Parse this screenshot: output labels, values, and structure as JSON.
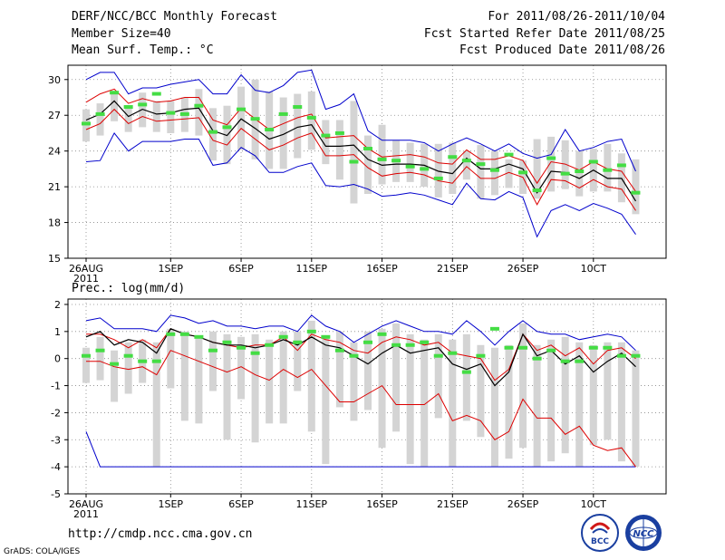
{
  "header": {
    "left_line1": "DERF/NCC/BCC Monthly Forecast",
    "left_line2": "Member Size=40",
    "left_line3": "Mean Surf. Temp.: °C",
    "right_line1": "For 2011/08/26-2011/10/04",
    "right_line2": "Fcst Started Refer Date 2011/08/25",
    "right_line3": "Fcst Produced Date 2011/08/26"
  },
  "footer": {
    "url": "http://cmdp.ncc.cma.gov.cn",
    "credit": "GrADS: COLA/IGES",
    "logo_bcc": "BCC",
    "logo_ncc": "NCC"
  },
  "colors": {
    "box": "#d4d4d4",
    "forecast": "#44dd44",
    "mean": "#000000",
    "band": "#dd0000",
    "envelope": "#0000cc",
    "grid": "#888888"
  },
  "chart_data": [
    {
      "type": "line",
      "title": "Mean Surf. Temp.: °C",
      "ylim": [
        15,
        31.2
      ],
      "yticks": [
        15,
        18,
        21,
        24,
        27,
        30
      ],
      "xticks": [
        {
          "day": 0,
          "label": "26AUG",
          "sub": "2011"
        },
        {
          "day": 6,
          "label": "1SEP"
        },
        {
          "day": 11,
          "label": "6SEP"
        },
        {
          "day": 16,
          "label": "11SEP"
        },
        {
          "day": 21,
          "label": "16SEP"
        },
        {
          "day": 26,
          "label": "21SEP"
        },
        {
          "day": 31,
          "label": "26SEP"
        },
        {
          "day": 36,
          "label": "10CT"
        }
      ],
      "x": [
        0,
        1,
        2,
        3,
        4,
        5,
        6,
        7,
        8,
        9,
        10,
        11,
        12,
        13,
        14,
        15,
        16,
        17,
        18,
        19,
        20,
        21,
        22,
        23,
        24,
        25,
        26,
        27,
        28,
        29,
        30,
        31,
        32,
        33,
        34,
        35,
        36,
        37,
        38,
        39
      ],
      "series": [
        {
          "name": "max",
          "values": [
            23.1,
            23.2,
            25.5,
            24.0,
            24.8,
            24.8,
            24.8,
            25.0,
            25.0,
            22.8,
            23.0,
            24.3,
            23.6,
            22.2,
            22.2,
            22.7,
            23.0,
            21.1,
            21.0,
            21.2,
            20.8,
            20.2,
            20.3,
            20.5,
            20.3,
            19.9,
            19.5,
            21.3,
            20.0,
            19.9,
            20.6,
            20.1,
            16.8,
            19.0,
            19.5,
            19.0,
            19.6,
            19.2,
            18.7,
            17.0
          ]
        },
        {
          "name": "p_low",
          "values": [
            25.8,
            26.3,
            27.5,
            26.3,
            26.9,
            26.5,
            26.6,
            26.7,
            26.8,
            24.9,
            24.5,
            25.9,
            25.0,
            24.1,
            24.5,
            25.1,
            25.5,
            23.6,
            23.6,
            23.7,
            22.6,
            21.9,
            22.1,
            22.2,
            22.0,
            21.5,
            21.3,
            22.7,
            21.7,
            21.7,
            22.2,
            21.8,
            19.5,
            21.6,
            21.5,
            20.9,
            21.6,
            21.0,
            20.8,
            19.0
          ]
        },
        {
          "name": "mean",
          "values": [
            26.6,
            27.1,
            28.2,
            26.9,
            27.5,
            27.1,
            27.2,
            27.5,
            27.6,
            25.7,
            25.3,
            26.7,
            25.9,
            25.0,
            25.4,
            26.0,
            26.2,
            24.4,
            24.4,
            24.5,
            23.3,
            22.8,
            22.9,
            22.9,
            22.8,
            22.3,
            22.1,
            23.4,
            22.5,
            22.5,
            22.9,
            22.5,
            20.5,
            22.3,
            22.2,
            21.7,
            22.4,
            21.7,
            21.7,
            19.8
          ]
        },
        {
          "name": "p_high",
          "values": [
            28.1,
            28.8,
            29.2,
            28.0,
            28.4,
            28.1,
            28.2,
            28.5,
            28.5,
            26.6,
            26.2,
            27.6,
            26.7,
            25.8,
            26.3,
            26.8,
            27.1,
            25.1,
            25.2,
            25.3,
            24.2,
            23.5,
            23.6,
            23.7,
            23.5,
            23.0,
            22.9,
            24.1,
            23.3,
            23.3,
            23.6,
            23.2,
            21.3,
            23.1,
            22.9,
            22.4,
            23.1,
            22.5,
            22.3,
            20.6
          ]
        },
        {
          "name": "min",
          "values": [
            30.0,
            30.6,
            30.6,
            28.8,
            29.3,
            29.3,
            29.6,
            29.8,
            30.0,
            28.8,
            28.8,
            30.4,
            29.1,
            28.9,
            29.5,
            30.6,
            30.8,
            27.5,
            27.9,
            28.8,
            25.7,
            24.9,
            24.9,
            24.9,
            24.7,
            24.0,
            24.6,
            25.1,
            24.6,
            24.0,
            24.6,
            23.8,
            23.4,
            23.7,
            25.8,
            24.0,
            24.3,
            24.8,
            25.0,
            22.3
          ]
        },
        {
          "name": "fcst",
          "values": [
            26.3,
            27.1,
            28.9,
            27.7,
            27.9,
            28.8,
            27.2,
            27.1,
            27.8,
            25.6,
            26.0,
            27.5,
            26.7,
            25.8,
            27.1,
            27.7,
            26.8,
            25.3,
            25.5,
            23.1,
            24.2,
            23.3,
            23.2,
            22.7,
            22.5,
            21.7,
            23.5,
            23.2,
            22.9,
            22.4,
            23.7,
            22.2,
            20.7,
            23.4,
            22.1,
            22.3,
            23.1,
            22.4,
            22.8,
            20.5
          ]
        },
        {
          "name": "box_low",
          "values": [
            24.8,
            25.3,
            26.5,
            25.6,
            26.0,
            25.6,
            25.5,
            25.6,
            25.3,
            23.2,
            22.9,
            24.1,
            23.3,
            22.5,
            22.5,
            23.4,
            24.1,
            22.9,
            21.6,
            19.6,
            20.4,
            21.2,
            21.4,
            21.4,
            21.0,
            20.1,
            20.4,
            21.6,
            20.0,
            20.3,
            20.9,
            20.4,
            20.0,
            20.6,
            20.8,
            20.2,
            20.6,
            20.6,
            19.7,
            18.7
          ]
        },
        {
          "name": "box_high",
          "values": [
            27.5,
            28.0,
            28.8,
            27.6,
            28.9,
            28.2,
            28.2,
            28.5,
            29.2,
            27.6,
            27.8,
            29.4,
            30.0,
            29.0,
            28.5,
            28.8,
            29.0,
            26.6,
            26.6,
            28.2,
            25.3,
            26.2,
            24.9,
            24.7,
            24.6,
            24.6,
            24.7,
            24.0,
            24.5,
            24.0,
            23.3,
            23.2,
            25.0,
            25.2,
            24.9,
            24.0,
            24.2,
            24.6,
            23.8,
            23.3
          ]
        }
      ]
    },
    {
      "type": "line",
      "title": "Prec.: log(mm/d)",
      "ylim": [
        -5,
        2.2
      ],
      "yticks": [
        -5,
        -4,
        -3,
        -2,
        -1,
        0,
        1,
        2
      ],
      "xticks": [
        {
          "day": 0,
          "label": "26AUG",
          "sub": "2011"
        },
        {
          "day": 6,
          "label": "1SEP"
        },
        {
          "day": 11,
          "label": "6SEP"
        },
        {
          "day": 16,
          "label": "11SEP"
        },
        {
          "day": 21,
          "label": "16SEP"
        },
        {
          "day": 26,
          "label": "21SEP"
        },
        {
          "day": 31,
          "label": "26SEP"
        },
        {
          "day": 36,
          "label": "10CT"
        }
      ],
      "x": [
        0,
        1,
        2,
        3,
        4,
        5,
        6,
        7,
        8,
        9,
        10,
        11,
        12,
        13,
        14,
        15,
        16,
        17,
        18,
        19,
        20,
        21,
        22,
        23,
        24,
        25,
        26,
        27,
        28,
        29,
        30,
        31,
        32,
        33,
        34,
        35,
        36,
        37,
        38,
        39
      ],
      "series": [
        {
          "name": "max",
          "values": [
            -2.7,
            -4.0,
            -4.0,
            -4.0,
            -4.0,
            -4.0,
            -4.0,
            -4.0,
            -4.0,
            -4.0,
            -4.0,
            -4.0,
            -4.0,
            -4.0,
            -4.0,
            -4.0,
            -4.0,
            -4.0,
            -4.0,
            -4.0,
            -4.0,
            -4.0,
            -4.0,
            -4.0,
            -4.0,
            -4.0,
            -4.0,
            -4.0,
            -4.0,
            -4.0,
            -4.0,
            -4.0,
            -4.0,
            -4.0,
            -4.0,
            -4.0,
            -4.0,
            -4.0,
            -4.0,
            -4.0
          ]
        },
        {
          "name": "p_low",
          "values": [
            -0.1,
            -0.1,
            -0.3,
            -0.4,
            -0.3,
            -0.6,
            0.3,
            0.1,
            -0.1,
            -0.3,
            -0.5,
            -0.3,
            -0.6,
            -0.8,
            -0.4,
            -0.7,
            -0.4,
            -1.0,
            -1.6,
            -1.6,
            -1.3,
            -1.0,
            -1.7,
            -1.7,
            -1.7,
            -1.3,
            -2.3,
            -2.1,
            -2.3,
            -3.0,
            -2.7,
            -1.5,
            -2.2,
            -2.2,
            -2.8,
            -2.5,
            -3.2,
            -3.4,
            -3.3,
            -4.0
          ]
        },
        {
          "name": "mean",
          "values": [
            0.8,
            1.0,
            0.5,
            0.7,
            0.6,
            0.2,
            1.1,
            0.9,
            0.8,
            0.6,
            0.5,
            0.5,
            0.4,
            0.5,
            0.7,
            0.5,
            0.8,
            0.5,
            0.4,
            0.1,
            -0.2,
            0.2,
            0.5,
            0.2,
            0.3,
            0.4,
            -0.2,
            -0.4,
            -0.2,
            -1.0,
            -0.5,
            0.9,
            0.1,
            0.3,
            -0.2,
            0.1,
            -0.5,
            -0.1,
            0.2,
            -0.3
          ]
        },
        {
          "name": "p_high",
          "values": [
            0.9,
            0.9,
            0.7,
            0.4,
            0.7,
            0.4,
            1.1,
            0.9,
            0.8,
            0.6,
            0.5,
            0.4,
            0.5,
            0.5,
            0.8,
            0.3,
            0.9,
            0.7,
            0.6,
            0.3,
            0.2,
            0.6,
            0.8,
            0.7,
            0.5,
            0.6,
            0.2,
            0.1,
            0.0,
            -0.8,
            -0.4,
            0.9,
            0.3,
            0.5,
            0.1,
            0.4,
            -0.2,
            0.3,
            0.4,
            0.0
          ]
        },
        {
          "name": "min",
          "values": [
            1.4,
            1.5,
            1.1,
            1.1,
            1.1,
            1.0,
            1.6,
            1.5,
            1.3,
            1.4,
            1.2,
            1.2,
            1.1,
            1.2,
            1.2,
            1.0,
            1.6,
            1.2,
            1.0,
            0.6,
            0.9,
            1.2,
            1.4,
            1.2,
            1.0,
            1.0,
            0.9,
            1.4,
            1.0,
            0.5,
            1.0,
            1.4,
            1.0,
            0.9,
            0.9,
            0.7,
            0.8,
            0.9,
            0.8,
            0.3
          ]
        },
        {
          "name": "fcst",
          "values": [
            0.1,
            0.3,
            -0.2,
            0.1,
            -0.1,
            -0.1,
            0.9,
            0.9,
            0.8,
            0.3,
            0.6,
            0.4,
            0.2,
            0.5,
            0.8,
            0.6,
            1.0,
            0.8,
            0.3,
            0.1,
            0.6,
            0.9,
            0.5,
            0.5,
            0.6,
            0.1,
            0.2,
            -0.5,
            0.1,
            1.1,
            0.4,
            0.4,
            0.0,
            0.3,
            -0.1,
            -0.1,
            0.4,
            0.4,
            0.1,
            0.1
          ]
        },
        {
          "name": "box_low",
          "values": [
            -0.9,
            -0.8,
            -1.6,
            -1.3,
            -0.9,
            -4.0,
            -1.1,
            -2.3,
            -2.4,
            -1.2,
            -3.0,
            -1.5,
            -3.1,
            -2.4,
            -2.4,
            -1.2,
            -2.7,
            -3.9,
            -1.8,
            -2.3,
            -1.9,
            -3.3,
            -2.7,
            -3.9,
            -4.0,
            -2.2,
            -4.0,
            -2.3,
            -2.9,
            -4.0,
            -3.7,
            -3.3,
            -4.0,
            -3.8,
            -3.5,
            -4.0,
            -3.2,
            -3.0,
            -3.8,
            -4.0
          ]
        },
        {
          "name": "box_high",
          "values": [
            0.4,
            0.8,
            0.3,
            0.6,
            0.7,
            0.6,
            1.1,
            1.0,
            0.8,
            1.0,
            0.9,
            0.8,
            0.9,
            0.7,
            1.0,
            1.0,
            1.4,
            0.8,
            1.0,
            0.6,
            1.0,
            1.1,
            1.3,
            0.9,
            0.7,
            0.9,
            0.7,
            0.9,
            0.5,
            0.4,
            0.5,
            1.3,
            0.5,
            0.7,
            0.8,
            0.6,
            0.5,
            0.6,
            0.6,
            0.3
          ]
        }
      ]
    }
  ]
}
